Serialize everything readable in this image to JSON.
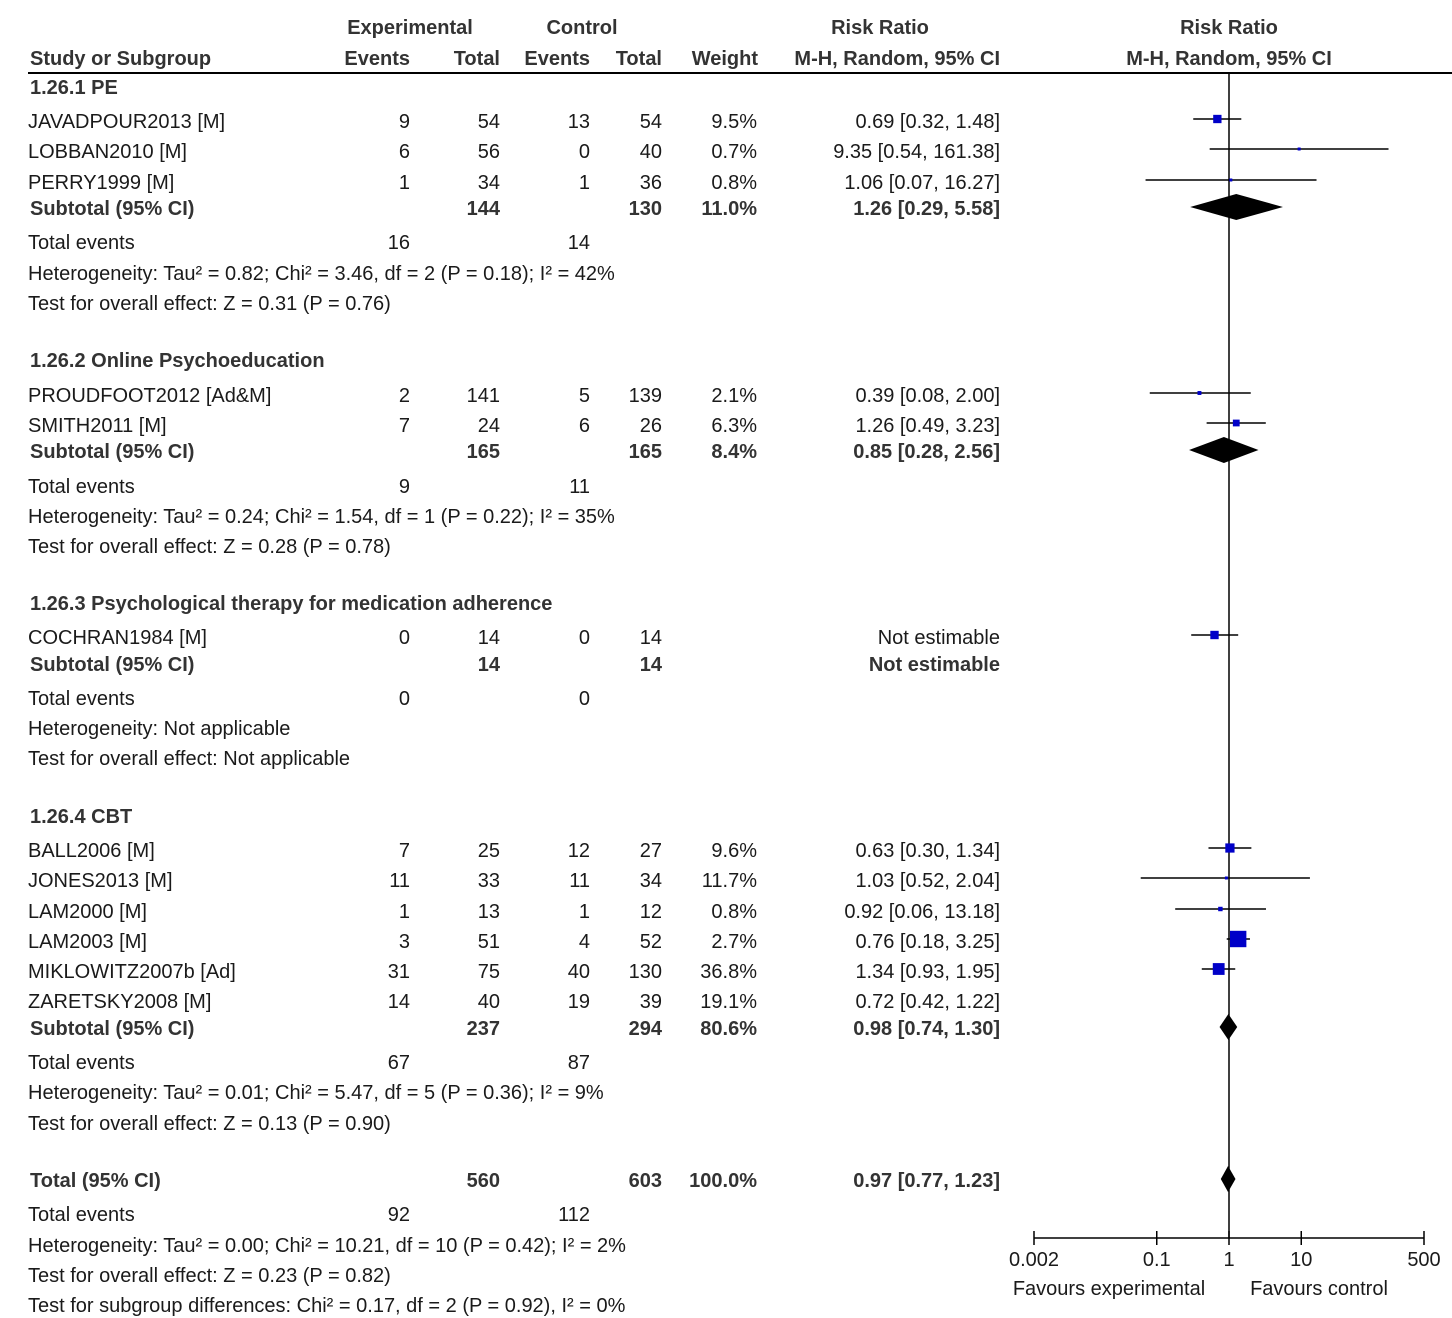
{
  "headers": {
    "experimental": "Experimental",
    "control": "Control",
    "risk_ratio_left": "Risk Ratio",
    "risk_ratio_right": "Risk Ratio",
    "study": "Study or Subgroup",
    "exp_events": "Events",
    "exp_total": "Total",
    "ctl_events": "Events",
    "ctl_total": "Total",
    "weight": "Weight",
    "method_left": "M-H, Random, 95% CI",
    "method_right": "M-H, Random, 95% CI"
  },
  "subgroups": [
    {
      "title": "1.26.1 PE",
      "studies": [
        {
          "name": "JAVADPOUR2013 [M]",
          "e_events": "9",
          "e_total": "54",
          "c_events": "13",
          "c_total": "54",
          "weight": "9.5%",
          "ci": "0.69 [0.32, 1.48]"
        },
        {
          "name": "LOBBAN2010 [M]",
          "e_events": "6",
          "e_total": "56",
          "c_events": "0",
          "c_total": "40",
          "weight": "0.7%",
          "ci": "9.35 [0.54, 161.38]"
        },
        {
          "name": "PERRY1999  [M]",
          "e_events": "1",
          "e_total": "34",
          "c_events": "1",
          "c_total": "36",
          "weight": "0.8%",
          "ci": "1.06 [0.07, 16.27]"
        }
      ],
      "subtotal": {
        "label": "Subtotal (95% CI)",
        "e_total": "144",
        "c_total": "130",
        "weight": "11.0%",
        "ci": "1.26 [0.29, 5.58]"
      },
      "total_events": {
        "label": "Total events",
        "e": "16",
        "c": "14"
      },
      "heterogeneity": "Heterogeneity: Tau² = 0.82; Chi² = 3.46, df = 2 (P = 0.18); I² = 42%",
      "overall": "Test for overall effect: Z = 0.31 (P = 0.76)"
    },
    {
      "title": "1.26.2 Online Psychoeducation",
      "studies": [
        {
          "name": "PROUDFOOT2012 [Ad&M]",
          "e_events": "2",
          "e_total": "141",
          "c_events": "5",
          "c_total": "139",
          "weight": "2.1%",
          "ci": "0.39 [0.08, 2.00]"
        },
        {
          "name": "SMITH2011 [M]",
          "e_events": "7",
          "e_total": "24",
          "c_events": "6",
          "c_total": "26",
          "weight": "6.3%",
          "ci": "1.26 [0.49, 3.23]"
        }
      ],
      "subtotal": {
        "label": "Subtotal (95% CI)",
        "e_total": "165",
        "c_total": "165",
        "weight": "8.4%",
        "ci": "0.85 [0.28, 2.56]"
      },
      "total_events": {
        "label": "Total events",
        "e": "9",
        "c": "11"
      },
      "heterogeneity": "Heterogeneity: Tau² = 0.24; Chi² = 1.54, df = 1 (P = 0.22); I² = 35%",
      "overall": "Test for overall effect: Z = 0.28 (P = 0.78)"
    },
    {
      "title": "1.26.3 Psychological therapy for medication adherence",
      "studies": [
        {
          "name": "COCHRAN1984 [M]",
          "e_events": "0",
          "e_total": "14",
          "c_events": "0",
          "c_total": "14",
          "weight": "",
          "ci": "Not estimable"
        }
      ],
      "subtotal": {
        "label": "Subtotal (95% CI)",
        "e_total": "14",
        "c_total": "14",
        "weight": "",
        "ci": "Not estimable"
      },
      "total_events": {
        "label": "Total events",
        "e": "0",
        "c": "0"
      },
      "heterogeneity": "Heterogeneity: Not applicable",
      "overall": "Test for overall effect: Not applicable"
    },
    {
      "title": "1.26.4 CBT",
      "studies": [
        {
          "name": "BALL2006 [M]",
          "e_events": "7",
          "e_total": "25",
          "c_events": "12",
          "c_total": "27",
          "weight": "9.6%",
          "ci": "0.63 [0.30, 1.34]"
        },
        {
          "name": "JONES2013 [M]",
          "e_events": "11",
          "e_total": "33",
          "c_events": "11",
          "c_total": "34",
          "weight": "11.7%",
          "ci": "1.03 [0.52, 2.04]"
        },
        {
          "name": "LAM2000 [M]",
          "e_events": "1",
          "e_total": "13",
          "c_events": "1",
          "c_total": "12",
          "weight": "0.8%",
          "ci": "0.92 [0.06, 13.18]"
        },
        {
          "name": "LAM2003 [M]",
          "e_events": "3",
          "e_total": "51",
          "c_events": "4",
          "c_total": "52",
          "weight": "2.7%",
          "ci": "0.76 [0.18, 3.25]"
        },
        {
          "name": "MIKLOWITZ2007b [Ad]",
          "e_events": "31",
          "e_total": "75",
          "c_events": "40",
          "c_total": "130",
          "weight": "36.8%",
          "ci": "1.34 [0.93, 1.95]"
        },
        {
          "name": "ZARETSKY2008  [M]",
          "e_events": "14",
          "e_total": "40",
          "c_events": "19",
          "c_total": "39",
          "weight": "19.1%",
          "ci": "0.72 [0.42, 1.22]"
        }
      ],
      "subtotal": {
        "label": "Subtotal (95% CI)",
        "e_total": "237",
        "c_total": "294",
        "weight": "80.6%",
        "ci": "0.98 [0.74, 1.30]"
      },
      "total_events": {
        "label": "Total events",
        "e": "67",
        "c": "87"
      },
      "heterogeneity": "Heterogeneity: Tau² = 0.01; Chi² = 5.47, df = 5 (P = 0.36); I² = 9%",
      "overall": "Test for overall effect: Z = 0.13 (P = 0.90)"
    }
  ],
  "total": {
    "label": "Total (95% CI)",
    "e_total": "560",
    "c_total": "603",
    "weight": "100.0%",
    "ci": "0.97 [0.77, 1.23]",
    "events_label": "Total events",
    "e_events": "92",
    "c_events": "112",
    "heterogeneity": "Heterogeneity: Tau² = 0.00; Chi² = 10.21, df = 10 (P = 0.42); I² = 2%",
    "overall": "Test for overall effect: Z = 0.23 (P = 0.82)",
    "subgroup_diff": "Test for subgroup differences: Chi² = 0.17, df = 2 (P = 0.92), I² = 0%"
  },
  "chart_data": {
    "type": "forest",
    "scale": "log",
    "null_value": 1,
    "xlim": [
      0.002,
      500
    ],
    "ticks": [
      {
        "value": 0.002,
        "label": "0.002"
      },
      {
        "value": 0.1,
        "label": "0.1"
      },
      {
        "value": 1,
        "label": "1"
      },
      {
        "value": 10,
        "label": "10"
      },
      {
        "value": 500,
        "label": "500"
      }
    ],
    "favours_left": "Favours experimental",
    "favours_right": "Favours control",
    "colors": {
      "study_marker": "#0000c8",
      "diamond": "#000000",
      "lines": "#000000"
    },
    "studies": [
      {
        "name": "JAVADPOUR2013 [M]",
        "est": 0.69,
        "lo": 0.32,
        "hi": 1.48,
        "weight": 9.5
      },
      {
        "name": "LOBBAN2010 [M]",
        "est": 9.35,
        "lo": 0.54,
        "hi": 161.38,
        "weight": 0.7
      },
      {
        "name": "PERRY1999  [M]",
        "est": 1.06,
        "lo": 0.07,
        "hi": 16.27,
        "weight": 0.8
      },
      {
        "name": "PROUDFOOT2012 [Ad&M]",
        "est": 0.39,
        "lo": 0.08,
        "hi": 2.0,
        "weight": 2.1
      },
      {
        "name": "SMITH2011 [M]",
        "est": 1.26,
        "lo": 0.49,
        "hi": 3.23,
        "weight": 6.3
      },
      {
        "name": "BALL2006 [M]",
        "est": 0.63,
        "lo": 0.3,
        "hi": 1.34,
        "weight": 9.6
      },
      {
        "name": "JONES2013 [M]",
        "est": 1.03,
        "lo": 0.52,
        "hi": 2.04,
        "weight": 11.7
      },
      {
        "name": "LAM2000 [M]",
        "est": 0.92,
        "lo": 0.06,
        "hi": 13.18,
        "weight": 0.8
      },
      {
        "name": "LAM2003 [M]",
        "est": 0.76,
        "lo": 0.18,
        "hi": 3.25,
        "weight": 2.7
      },
      {
        "name": "MIKLOWITZ2007b [Ad]",
        "est": 1.34,
        "lo": 0.93,
        "hi": 1.95,
        "weight": 36.8
      },
      {
        "name": "ZARETSKY2008  [M]",
        "est": 0.72,
        "lo": 0.42,
        "hi": 1.22,
        "weight": 19.1
      }
    ],
    "diamonds": [
      {
        "name": "1.26.1 PE subtotal",
        "est": 1.26,
        "lo": 0.29,
        "hi": 5.58
      },
      {
        "name": "1.26.2 Online Psychoeducation subtotal",
        "est": 0.85,
        "lo": 0.28,
        "hi": 2.56
      },
      {
        "name": "1.26.4 CBT subtotal",
        "est": 0.98,
        "lo": 0.74,
        "hi": 1.3
      },
      {
        "name": "Total",
        "est": 0.97,
        "lo": 0.77,
        "hi": 1.23
      }
    ]
  }
}
